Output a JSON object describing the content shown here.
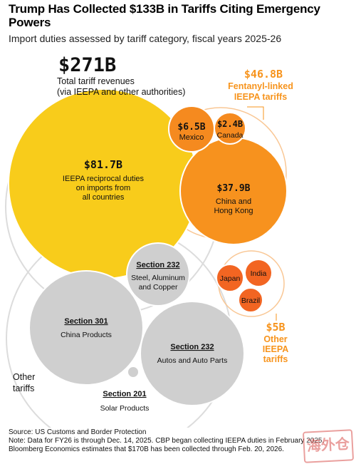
{
  "title": "Trump Has Collected $133B in Tariffs Citing Emergency Powers",
  "subtitle": "Import duties assessed by tariff category, fiscal years 2025-26",
  "colors": {
    "ieepa_yellow": "#f8cc1b",
    "fentanyl_orange": "#f7921e",
    "fentanyl_small": "#f58a1f",
    "other_ieepa_orange": "#f26522",
    "gray": "#cfcfcf",
    "outline": "#dcdcdc",
    "label_orange": "#f7941d"
  },
  "chart_data": {
    "type": "bubble",
    "title": "Trump Has Collected $133B in Tariffs Citing Emergency Powers",
    "subtitle": "Import duties assessed by tariff category, fiscal years 2025-26",
    "total": {
      "value": "$271B",
      "label_line1": "Total tariff revenues",
      "label_line2": "(via IEEPA and other authorities)"
    },
    "groups": [
      {
        "name": "Fentanyl-linked IEEPA tariffs",
        "value_label": "$46.8B",
        "label_line1": "Fentanyl-linked",
        "label_line2": "IEEPA tariffs"
      },
      {
        "name": "Other IEEPA tariffs",
        "value_label": "$5B",
        "label_line1": "Other",
        "label_line2": "IEEPA",
        "label_line3": "tariffs"
      },
      {
        "name": "Other tariffs",
        "label_line1": "Other",
        "label_line2": "tariffs"
      }
    ],
    "bubbles": [
      {
        "id": "ieepa-reciprocal",
        "value": 81.7,
        "value_label": "$81.7B",
        "label": [
          "IEEPA reciprocal duties",
          "on imports from",
          "all countries"
        ],
        "group": "IEEPA",
        "color": "#f8cc1b"
      },
      {
        "id": "china-hk",
        "value": 37.9,
        "value_label": "$37.9B",
        "label": [
          "China and",
          "Hong Kong"
        ],
        "group": "Fentanyl-linked IEEPA tariffs",
        "color": "#f7921e"
      },
      {
        "id": "mexico",
        "value": 6.5,
        "value_label": "$6.5B",
        "label": [
          "Mexico"
        ],
        "group": "Fentanyl-linked IEEPA tariffs",
        "color": "#f58a1f"
      },
      {
        "id": "canada",
        "value": 2.4,
        "value_label": "$2.4B",
        "label": [
          "Canada"
        ],
        "group": "Fentanyl-linked IEEPA tariffs",
        "color": "#f58a1f"
      },
      {
        "id": "japan",
        "label": [
          "Japan"
        ],
        "group": "Other IEEPA tariffs",
        "color": "#f26522"
      },
      {
        "id": "india",
        "label": [
          "India"
        ],
        "group": "Other IEEPA tariffs",
        "color": "#f26522"
      },
      {
        "id": "brazil",
        "label": [
          "Brazil"
        ],
        "group": "Other IEEPA tariffs",
        "color": "#f26522"
      },
      {
        "id": "sec232-steel",
        "heading": "Section 232",
        "label": [
          "Steel, Aluminum",
          "and Copper"
        ],
        "group": "Other tariffs",
        "color": "#cfcfcf"
      },
      {
        "id": "sec301-china",
        "heading": "Section 301",
        "label": [
          "China Products"
        ],
        "group": "Other tariffs",
        "color": "#cfcfcf"
      },
      {
        "id": "sec232-autos",
        "heading": "Section 232",
        "label": [
          "Autos and Auto Parts"
        ],
        "group": "Other tariffs",
        "color": "#cfcfcf"
      },
      {
        "id": "sec201-solar",
        "heading": "Section 201",
        "label": [
          "Solar Products"
        ],
        "group": "Other tariffs",
        "color": "#cfcfcf"
      }
    ]
  },
  "footer": {
    "source": "Source: US Customs and Border Protection",
    "note1": "Note: Data for FY26 is through Dec. 14, 2025. CBP began collecting IEEPA duties in February 2025.",
    "note2": "Bloomberg Economics estimates that $170B has been collected through Feb. 20, 2026."
  },
  "watermark": "海外仓"
}
